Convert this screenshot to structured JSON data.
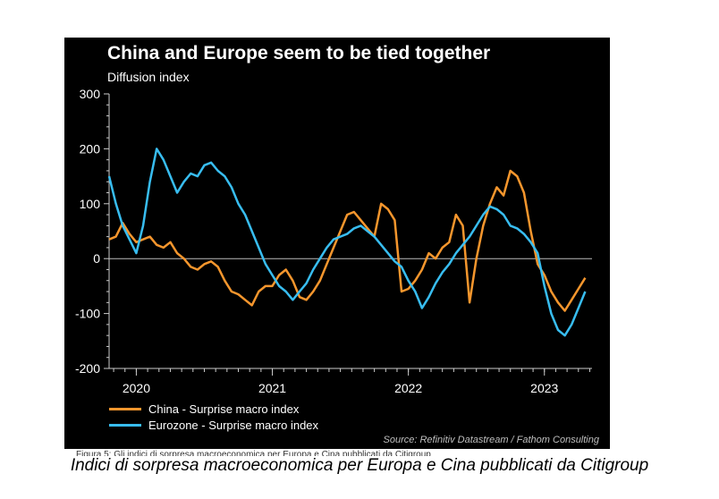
{
  "chart_data": {
    "type": "line",
    "title": "China and Europe seem to be tied together",
    "subtitle": "Diffusion index",
    "source": "Source: Refinitiv Datastream / Fathom Consulting",
    "ylim": [
      -200,
      300
    ],
    "yticks": [
      300,
      200,
      100,
      0,
      -100,
      -200
    ],
    "xlim": [
      2019.8,
      2023.35
    ],
    "xticks": [
      {
        "value": 2020.0,
        "label": "2020"
      },
      {
        "value": 2021.0,
        "label": "2021"
      },
      {
        "value": 2022.0,
        "label": "2022"
      },
      {
        "value": 2023.0,
        "label": "2023"
      }
    ],
    "grid": false,
    "legend_position": "bottom-left",
    "series": [
      {
        "name": "China - Surprise macro index",
        "color": "#f5962d",
        "x": [
          2019.8,
          2019.85,
          2019.9,
          2019.95,
          2020.0,
          2020.05,
          2020.1,
          2020.15,
          2020.2,
          2020.25,
          2020.3,
          2020.35,
          2020.4,
          2020.45,
          2020.5,
          2020.55,
          2020.6,
          2020.65,
          2020.7,
          2020.75,
          2020.8,
          2020.85,
          2020.9,
          2020.95,
          2021.0,
          2021.05,
          2021.1,
          2021.15,
          2021.2,
          2021.25,
          2021.3,
          2021.35,
          2021.4,
          2021.45,
          2021.5,
          2021.55,
          2021.6,
          2021.65,
          2021.7,
          2021.75,
          2021.8,
          2021.85,
          2021.9,
          2021.95,
          2022.0,
          2022.05,
          2022.1,
          2022.15,
          2022.2,
          2022.25,
          2022.3,
          2022.35,
          2022.4,
          2022.45,
          2022.5,
          2022.55,
          2022.6,
          2022.65,
          2022.7,
          2022.75,
          2022.8,
          2022.85,
          2022.9,
          2022.95,
          2023.0,
          2023.05,
          2023.1,
          2023.15,
          2023.2,
          2023.25,
          2023.3
        ],
        "values": [
          35,
          40,
          65,
          45,
          30,
          35,
          40,
          25,
          20,
          30,
          10,
          0,
          -15,
          -20,
          -10,
          -5,
          -15,
          -40,
          -60,
          -65,
          -75,
          -85,
          -60,
          -50,
          -50,
          -30,
          -20,
          -40,
          -70,
          -75,
          -60,
          -40,
          -10,
          20,
          50,
          80,
          85,
          70,
          55,
          40,
          100,
          90,
          70,
          -60,
          -55,
          -40,
          -20,
          10,
          0,
          20,
          30,
          80,
          60,
          -80,
          0,
          60,
          100,
          130,
          115,
          160,
          150,
          120,
          50,
          -10,
          -30,
          -60,
          -80,
          -95,
          -75,
          -55,
          -35
        ]
      },
      {
        "name": "Eurozone - Surprise macro index",
        "color": "#38bdf0",
        "x": [
          2019.8,
          2019.85,
          2019.9,
          2019.95,
          2020.0,
          2020.05,
          2020.1,
          2020.15,
          2020.2,
          2020.25,
          2020.3,
          2020.35,
          2020.4,
          2020.45,
          2020.5,
          2020.55,
          2020.6,
          2020.65,
          2020.7,
          2020.75,
          2020.8,
          2020.85,
          2020.9,
          2020.95,
          2021.0,
          2021.05,
          2021.1,
          2021.15,
          2021.2,
          2021.25,
          2021.3,
          2021.35,
          2021.4,
          2021.45,
          2021.5,
          2021.55,
          2021.6,
          2021.65,
          2021.7,
          2021.75,
          2021.8,
          2021.85,
          2021.9,
          2021.95,
          2022.0,
          2022.05,
          2022.1,
          2022.15,
          2022.2,
          2022.25,
          2022.3,
          2022.35,
          2022.4,
          2022.45,
          2022.5,
          2022.55,
          2022.6,
          2022.65,
          2022.7,
          2022.75,
          2022.8,
          2022.85,
          2022.9,
          2022.95,
          2023.0,
          2023.05,
          2023.1,
          2023.15,
          2023.2,
          2023.25,
          2023.3
        ],
        "values": [
          150,
          100,
          60,
          35,
          10,
          60,
          140,
          200,
          180,
          150,
          120,
          140,
          155,
          150,
          170,
          175,
          160,
          150,
          130,
          100,
          80,
          50,
          20,
          -10,
          -30,
          -50,
          -60,
          -75,
          -60,
          -45,
          -20,
          0,
          20,
          35,
          40,
          45,
          55,
          60,
          50,
          40,
          25,
          10,
          -5,
          -15,
          -40,
          -60,
          -90,
          -70,
          -45,
          -25,
          -10,
          10,
          25,
          40,
          60,
          80,
          95,
          90,
          80,
          60,
          55,
          45,
          30,
          10,
          -50,
          -100,
          -130,
          -140,
          -120,
          -90,
          -60
        ]
      }
    ]
  },
  "caption": "Indici di sorpresa macroeconomica per Europa e Cina pubblicati da Citigroup",
  "cut_caption": "Figura 5: Gli indici di sorpresa macroeconomica per Europa e Cina pubblicati da Citigroup"
}
